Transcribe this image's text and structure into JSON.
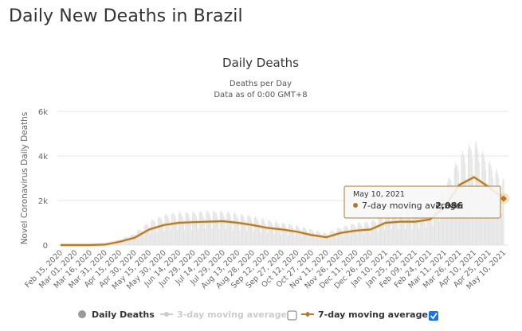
{
  "page": {
    "title": "Daily New Deaths in Brazil"
  },
  "chart_data": {
    "type": "line",
    "title": "Daily Deaths",
    "subtitle_line1": "Deaths per Day",
    "subtitle_line2": "Data as of 0:00 GMT+8",
    "ylabel": "Novel Coronavirus Daily Deaths",
    "xlabel": "",
    "ylim": [
      0,
      6000
    ],
    "yticks": [
      0,
      2000,
      4000,
      6000
    ],
    "ytick_labels": [
      "0",
      "2k",
      "4k",
      "6k"
    ],
    "grid": true,
    "xticks": [
      "Feb 15, 2020",
      "Mar 01, 2020",
      "Mar 16, 2020",
      "Mar 31, 2020",
      "Apr 15, 2020",
      "Apr 30, 2020",
      "May 15, 2020",
      "May 30, 2020",
      "Jun 14, 2020",
      "Jun 29, 2020",
      "Jul 14, 2020",
      "Jul 29, 2020",
      "Aug 13, 2020",
      "Aug 28, 2020",
      "Sep 12, 2020",
      "Sep 27, 2020",
      "Oct 12, 2020",
      "Oct 27, 2020",
      "Nov 11, 2020",
      "Nov 26, 2020",
      "Dec 11, 2020",
      "Dec 26, 2020",
      "Jan 10, 2021",
      "Jan 25, 2021",
      "Feb 09, 2021",
      "Feb 24, 2021",
      "Mar 11, 2021",
      "Mar 26, 2021",
      "Apr 10, 2021",
      "Apr 25, 2021",
      "May 10, 2021"
    ],
    "series": [
      {
        "name": "7-day moving average",
        "color": "#b07a2d",
        "visible": true,
        "x": [
          "Feb 15, 2020",
          "Mar 01, 2020",
          "Mar 16, 2020",
          "Mar 31, 2020",
          "Apr 15, 2020",
          "Apr 30, 2020",
          "May 15, 2020",
          "May 30, 2020",
          "Jun 14, 2020",
          "Jun 29, 2020",
          "Jul 14, 2020",
          "Jul 29, 2020",
          "Aug 13, 2020",
          "Aug 28, 2020",
          "Sep 12, 2020",
          "Sep 27, 2020",
          "Oct 12, 2020",
          "Oct 27, 2020",
          "Nov 11, 2020",
          "Nov 26, 2020",
          "Dec 11, 2020",
          "Dec 26, 2020",
          "Jan 10, 2021",
          "Jan 25, 2021",
          "Feb 09, 2021",
          "Feb 24, 2021",
          "Mar 11, 2021",
          "Mar 26, 2021",
          "Apr 10, 2021",
          "Apr 25, 2021",
          "May 10, 2021"
        ],
        "values": [
          0,
          0,
          0,
          20,
          150,
          330,
          700,
          900,
          1000,
          1030,
          1050,
          1070,
          1000,
          900,
          770,
          700,
          600,
          450,
          350,
          550,
          650,
          700,
          1000,
          1050,
          1050,
          1150,
          1700,
          2700,
          3050,
          2600,
          2086
        ]
      },
      {
        "name": "Daily Deaths",
        "color": "#e2e2e2",
        "visible": true,
        "x": [
          "Feb 15, 2020",
          "Mar 01, 2020",
          "Mar 16, 2020",
          "Mar 31, 2020",
          "Apr 15, 2020",
          "Apr 30, 2020",
          "May 15, 2020",
          "May 30, 2020",
          "Jun 14, 2020",
          "Jun 29, 2020",
          "Jul 14, 2020",
          "Jul 29, 2020",
          "Aug 13, 2020",
          "Aug 28, 2020",
          "Sep 12, 2020",
          "Sep 27, 2020",
          "Oct 12, 2020",
          "Oct 27, 2020",
          "Nov 11, 2020",
          "Nov 26, 2020",
          "Dec 11, 2020",
          "Dec 26, 2020",
          "Jan 10, 2021",
          "Jan 25, 2021",
          "Feb 09, 2021",
          "Feb 24, 2021",
          "Mar 11, 2021",
          "Mar 26, 2021",
          "Apr 10, 2021",
          "Apr 25, 2021",
          "May 10, 2021"
        ],
        "values": [
          0,
          0,
          0,
          30,
          200,
          450,
          900,
          1150,
          1250,
          1250,
          1300,
          1300,
          1200,
          1100,
          950,
          850,
          750,
          600,
          450,
          700,
          850,
          900,
          1250,
          1300,
          1300,
          1450,
          2200,
          3400,
          4000,
          3200,
          2500
        ]
      },
      {
        "name": "3-day moving average",
        "color": "#cccccc",
        "visible": false,
        "values": []
      }
    ],
    "tooltip": {
      "date": "May 10, 2021",
      "series": "7-day moving average",
      "label": "7-day moving average:",
      "value": "2,086"
    }
  },
  "legend": {
    "items": [
      {
        "label": "Daily Deaths",
        "enabled": true
      },
      {
        "label": "3-day moving average",
        "enabled": false
      },
      {
        "label": "7-day moving average",
        "enabled": true
      }
    ],
    "checkboxes": [
      {
        "for": "3-day moving average",
        "checked": false
      },
      {
        "for": "7-day moving average",
        "checked": true
      }
    ]
  }
}
